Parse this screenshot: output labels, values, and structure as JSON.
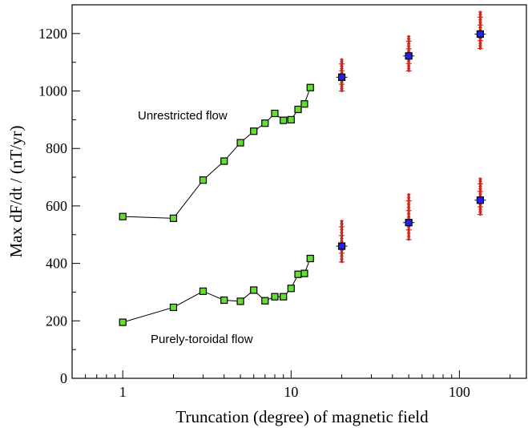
{
  "chart_data": {
    "type": "scatter",
    "title": "",
    "xlabel": "Truncation (degree) of magnetic field",
    "ylabel": "Max dF/dt / (nT/yr)",
    "xscale": "log",
    "xlim": [
      0.5,
      250
    ],
    "ylim": [
      0,
      1300
    ],
    "x_ticks": [
      1,
      10,
      100
    ],
    "x_tick_labels": [
      "1",
      "10",
      "100"
    ],
    "y_ticks": [
      0,
      200,
      400,
      600,
      800,
      1000,
      1200
    ],
    "y_tick_labels": [
      "0",
      "200",
      "400",
      "600",
      "800",
      "1000",
      "1200"
    ],
    "grid": false,
    "annotations": [
      {
        "text": "Unrestricted flow",
        "x": 1.2,
        "y": 910
      },
      {
        "text": "Purely-toroidal flow",
        "x": 1.3,
        "y": 135
      }
    ],
    "series": [
      {
        "marker": "square",
        "color": "#66dd33",
        "connected": true,
        "x": [
          1,
          2,
          3,
          4,
          5,
          6,
          7,
          8,
          9,
          10,
          11,
          12,
          13
        ],
        "y": [
          563,
          557,
          690,
          756,
          820,
          860,
          888,
          922,
          898,
          900,
          936,
          955,
          1012
        ]
      },
      {
        "marker": "square",
        "color": "#66dd33",
        "connected": true,
        "x": [
          1,
          2,
          3,
          4,
          5,
          6,
          7,
          8,
          9,
          10,
          11,
          12,
          13
        ],
        "y": [
          195,
          247,
          303,
          272,
          268,
          307,
          270,
          284,
          284,
          313,
          362,
          365,
          417
        ]
      },
      {
        "marker": "square",
        "color": "#2222ee",
        "connected": false,
        "x": [
          20,
          50,
          133
        ],
        "y": [
          1048,
          1122,
          1198
        ],
        "spread_color": "#cc2a1e",
        "spread": [
          [
            1000,
            1110
          ],
          [
            1070,
            1190
          ],
          [
            1148,
            1275
          ]
        ]
      },
      {
        "marker": "square",
        "color": "#2222ee",
        "connected": false,
        "x": [
          20,
          50,
          133
        ],
        "y": [
          460,
          542,
          620
        ],
        "spread_color": "#cc2a1e",
        "spread": [
          [
            405,
            548
          ],
          [
            483,
            640
          ],
          [
            570,
            695
          ]
        ]
      }
    ]
  }
}
